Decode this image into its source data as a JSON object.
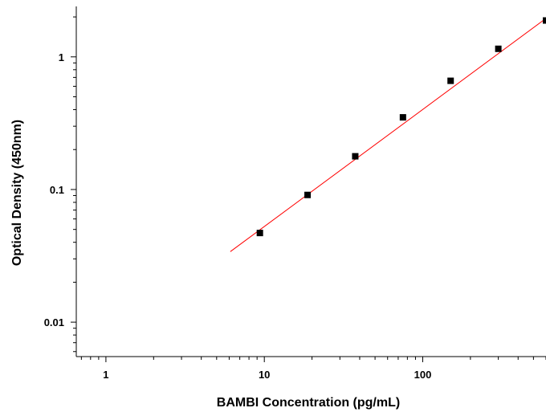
{
  "chart_data": {
    "type": "scatter",
    "title": "",
    "xlabel": "BAMBI Concentration (pg/mL)",
    "ylabel": "Optical Density (450nm)",
    "x_scale": "log",
    "y_scale": "log",
    "xlim": [
      0.65,
      600
    ],
    "ylim": [
      0.0055,
      2.4
    ],
    "x_ticks": [
      {
        "value": 1,
        "label": "1"
      },
      {
        "value": 10,
        "label": "10"
      },
      {
        "value": 100,
        "label": "100"
      }
    ],
    "y_ticks": [
      {
        "value": 0.01,
        "label": "0.01"
      },
      {
        "value": 0.1,
        "label": "0.1"
      },
      {
        "value": 1,
        "label": "1"
      }
    ],
    "grid": false,
    "legend": false,
    "series": [
      {
        "marker": "square",
        "color": "#000000",
        "x": [
          9.375,
          18.75,
          37.5,
          75,
          150,
          300,
          600
        ],
        "y": [
          0.047,
          0.091,
          0.178,
          0.35,
          0.66,
          1.15,
          1.88
        ]
      }
    ],
    "fit_line": {
      "color": "#ff0000",
      "x": [
        6.1,
        600
      ],
      "y": [
        0.034,
        1.95
      ]
    }
  }
}
